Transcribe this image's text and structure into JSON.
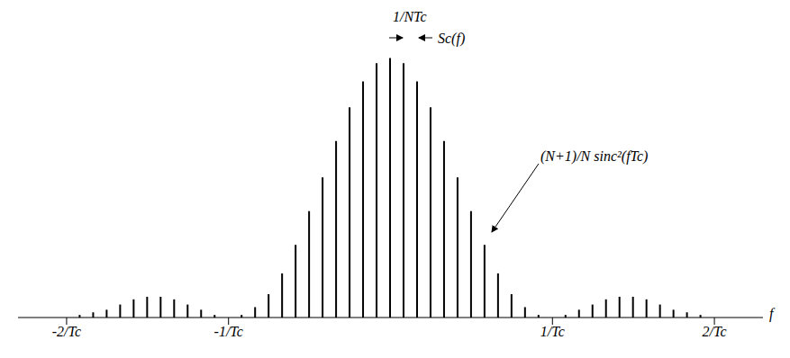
{
  "chart_data": {
    "type": "bar",
    "x": [
      -2,
      -1.9167,
      -1.8333,
      -1.75,
      -1.6667,
      -1.5833,
      -1.5,
      -1.4167,
      -1.3333,
      -1.25,
      -1.1667,
      -1.0833,
      -1,
      -0.9167,
      -0.8333,
      -0.75,
      -0.6667,
      -0.5833,
      -0.5,
      -0.4167,
      -0.3333,
      -0.25,
      -0.1667,
      -0.0833,
      0,
      0.0833,
      0.1667,
      0.25,
      0.3333,
      0.4167,
      0.5,
      0.5833,
      0.6667,
      0.75,
      0.8333,
      0.9167,
      1,
      1.0833,
      1.1667,
      1.25,
      1.3333,
      1.4167,
      1.5,
      1.5833,
      1.6667,
      1.75,
      1.8333,
      1.9167,
      2
    ],
    "values": [
      0,
      0.01,
      0.02,
      0.03,
      0.05,
      0.07,
      0.08,
      0.08,
      0.07,
      0.05,
      0.03,
      0.01,
      0,
      0.01,
      0.04,
      0.09,
      0.17,
      0.28,
      0.41,
      0.54,
      0.68,
      0.81,
      0.91,
      0.98,
      1,
      0.98,
      0.91,
      0.81,
      0.68,
      0.54,
      0.41,
      0.28,
      0.17,
      0.09,
      0.04,
      0.01,
      0,
      0.01,
      0.03,
      0.05,
      0.07,
      0.08,
      0.08,
      0.07,
      0.05,
      0.03,
      0.02,
      0.01,
      0
    ],
    "color": "#000000",
    "xlim": [
      -2.3,
      2.3
    ],
    "xticks": [
      {
        "value": -2,
        "label": "-2/Tc"
      },
      {
        "value": -1,
        "label": "-1/Tc"
      },
      {
        "value": 1,
        "label": "1/Tc"
      },
      {
        "value": 2,
        "label": "2/Tc"
      }
    ],
    "ylim": [
      0,
      1.05
    ],
    "yticks": [],
    "grid": false,
    "tick_labels": "x",
    "x_label": "f",
    "annotations": [
      "1/NTc",
      "Sc(f)",
      "(N+1)/N sinc²(fTc)"
    ]
  }
}
